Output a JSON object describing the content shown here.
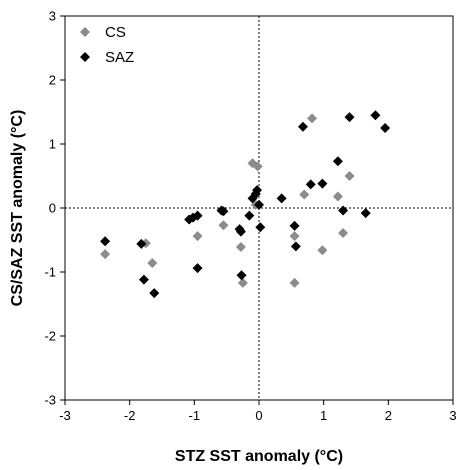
{
  "chart_data": {
    "type": "scatter",
    "xlabel": "STZ SST anomaly (°C)",
    "ylabel": "CS/SAZ SST anomaly (°C)",
    "xlim": [
      -3,
      3
    ],
    "ylim": [
      -3,
      3
    ],
    "xticks": [
      "-3",
      "-2",
      "-1",
      "0",
      "1",
      "2",
      "3"
    ],
    "yticks": [
      "-3",
      "-2",
      "-1",
      "0",
      "1",
      "2",
      "3"
    ],
    "grid": false,
    "reference_lines": "dotted lines at x=0 and y=0",
    "legend": {
      "placement": "top-left"
    },
    "series": [
      {
        "name": "CS",
        "color": "#8c8c8c",
        "marker": "diamond",
        "points": [
          [
            -2.38,
            -0.72
          ],
          [
            -1.75,
            -0.55
          ],
          [
            -1.65,
            -0.86
          ],
          [
            -0.95,
            -0.44
          ],
          [
            -0.28,
            -0.61
          ],
          [
            -0.25,
            -1.17
          ],
          [
            -0.55,
            -0.27
          ],
          [
            -0.1,
            0.7
          ],
          [
            -0.02,
            0.65
          ],
          [
            -0.05,
            0.05
          ],
          [
            0.55,
            -0.44
          ],
          [
            0.55,
            -1.17
          ],
          [
            0.7,
            0.21
          ],
          [
            0.82,
            1.4
          ],
          [
            0.98,
            -0.66
          ],
          [
            1.22,
            0.18
          ],
          [
            1.3,
            -0.39
          ],
          [
            1.4,
            0.5
          ]
        ]
      },
      {
        "name": "SAZ",
        "color": "#000000",
        "marker": "diamond",
        "points": [
          [
            -2.38,
            -0.52
          ],
          [
            -1.82,
            -0.56
          ],
          [
            -1.78,
            -1.12
          ],
          [
            -1.62,
            -1.33
          ],
          [
            -1.08,
            -0.18
          ],
          [
            -1.02,
            -0.15
          ],
          [
            -0.95,
            -0.12
          ],
          [
            -0.95,
            -0.94
          ],
          [
            -0.58,
            -0.04
          ],
          [
            -0.55,
            -0.05
          ],
          [
            -0.3,
            -0.33
          ],
          [
            -0.28,
            -0.37
          ],
          [
            -0.27,
            -1.05
          ],
          [
            -0.15,
            -0.12
          ],
          [
            -0.1,
            0.15
          ],
          [
            -0.05,
            0.22
          ],
          [
            -0.03,
            0.28
          ],
          [
            0.0,
            0.05
          ],
          [
            0.02,
            -0.3
          ],
          [
            0.35,
            0.15
          ],
          [
            0.55,
            -0.28
          ],
          [
            0.57,
            -0.6
          ],
          [
            0.68,
            1.27
          ],
          [
            0.8,
            0.37
          ],
          [
            0.98,
            0.38
          ],
          [
            1.22,
            0.73
          ],
          [
            1.3,
            -0.04
          ],
          [
            1.4,
            1.42
          ],
          [
            1.65,
            -0.08
          ],
          [
            1.8,
            1.45
          ],
          [
            1.95,
            1.25
          ]
        ]
      }
    ]
  }
}
